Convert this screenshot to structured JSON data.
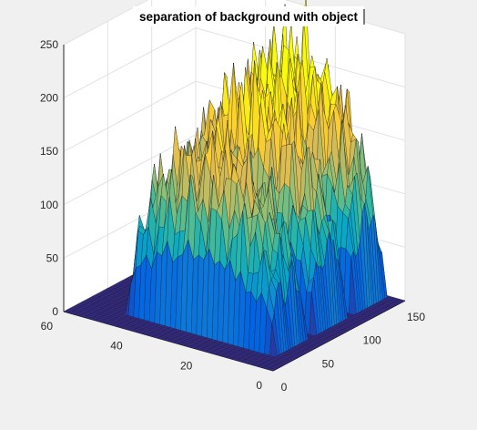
{
  "window": {
    "background": "#f0f0f0",
    "axes_face": "#ffffff"
  },
  "chart_data": {
    "type": "surface",
    "title": "separation of background with object",
    "xlabel": "",
    "ylabel": "",
    "zlabel": "",
    "xlim": [
      0,
      150
    ],
    "ylim": [
      0,
      60
    ],
    "zlim": [
      0,
      250
    ],
    "xticks": [
      "0",
      "50",
      "100",
      "150"
    ],
    "yticks": [
      "0",
      "20",
      "40",
      "60"
    ],
    "zticks": [
      "0",
      "50",
      "100",
      "150",
      "200",
      "250"
    ],
    "grid": true,
    "colormap": "parula",
    "colormap_stops": [
      "#352a87",
      "#0363e1",
      "#1485d4",
      "#06a7c6",
      "#38b99e",
      "#92bf73",
      "#d9ba56",
      "#fcce2e",
      "#f9fb0e"
    ],
    "background_level": 0,
    "objects": [
      {
        "x_center": 40,
        "x_halfwidth": 20,
        "y_min": 5,
        "y_max": 48,
        "peak": 150
      },
      {
        "x_center": 85,
        "x_halfwidth": 20,
        "y_min": 5,
        "y_max": 48,
        "peak": 175
      },
      {
        "x_center": 130,
        "x_halfwidth": 20,
        "y_min": 5,
        "y_max": 48,
        "peak": 195
      }
    ]
  }
}
